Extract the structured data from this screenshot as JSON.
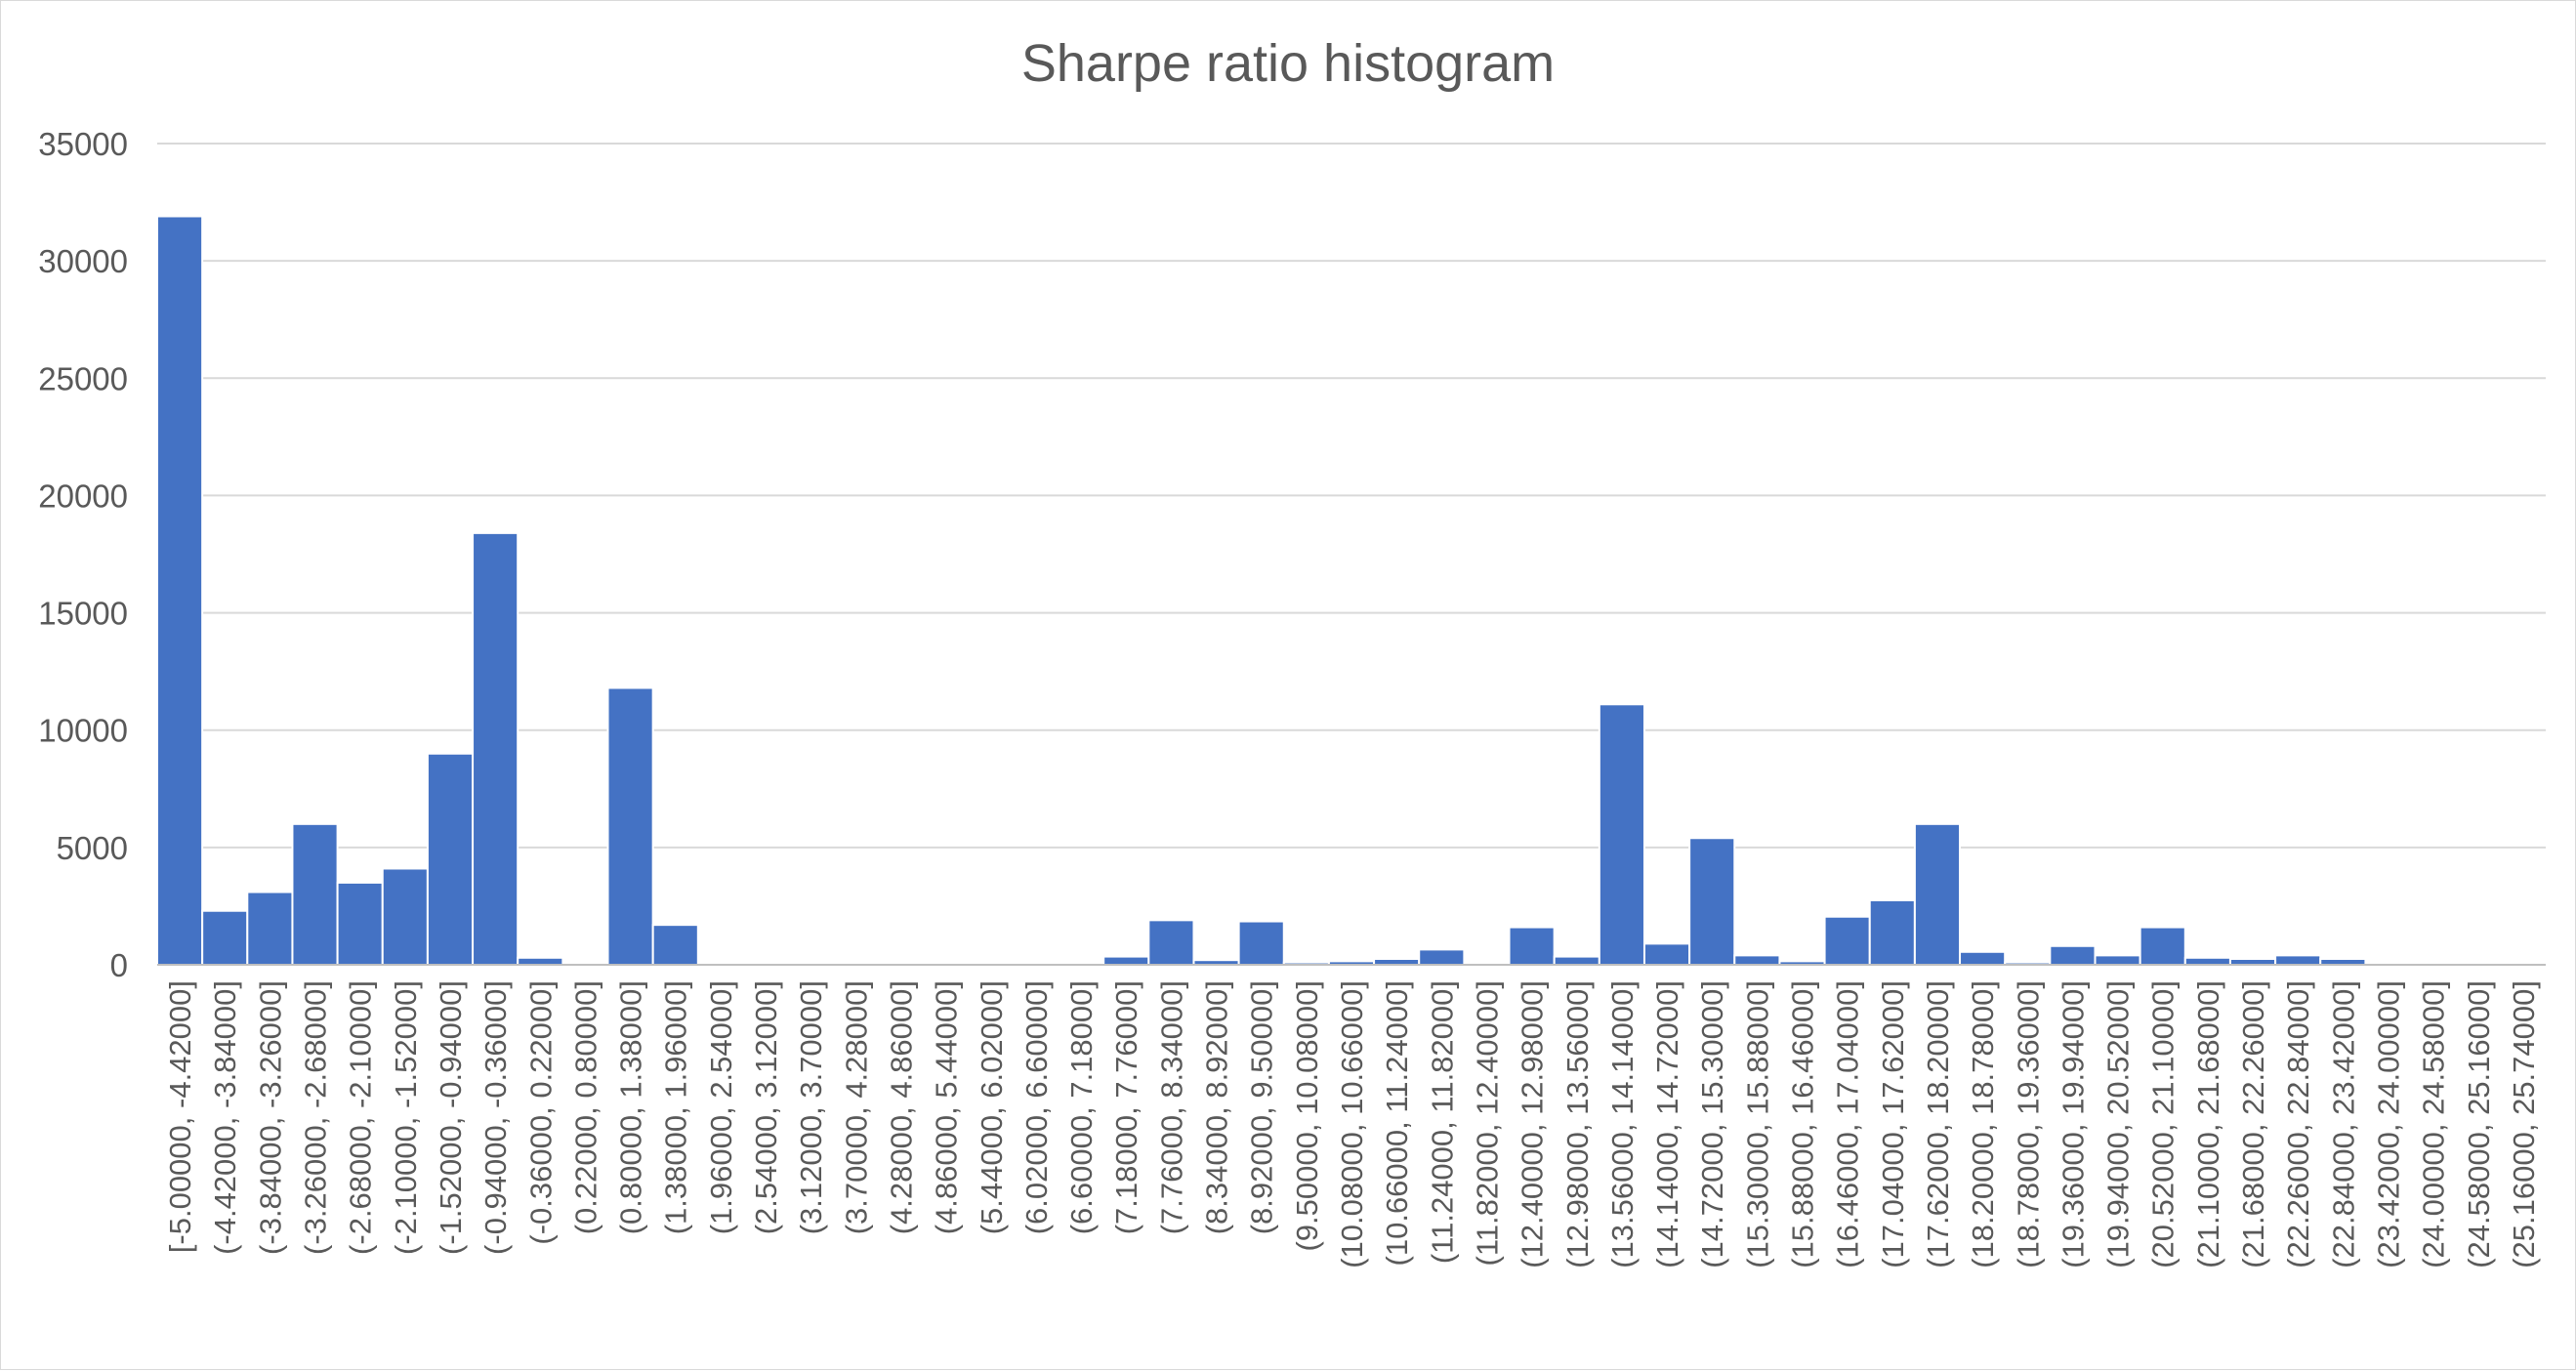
{
  "chart_data": {
    "type": "bar",
    "title": "Sharpe ratio histogram",
    "xlabel": "",
    "ylabel": "",
    "ylim": [
      0,
      35000
    ],
    "yticks": [
      0,
      5000,
      10000,
      15000,
      20000,
      25000,
      30000,
      35000
    ],
    "grid": true,
    "bar_color": "#4472C4",
    "categories": [
      "[-5.00000, -4.42000]",
      "(-4.42000, -3.84000]",
      "(-3.84000, -3.26000]",
      "(-3.26000, -2.68000]",
      "(-2.68000, -2.10000]",
      "(-2.10000, -1.52000]",
      "(-1.52000, -0.94000]",
      "(-0.94000, -0.36000]",
      "(-0.36000, 0.22000]",
      "(0.22000, 0.80000]",
      "(0.80000, 1.38000]",
      "(1.38000, 1.96000]",
      "(1.96000, 2.54000]",
      "(2.54000, 3.12000]",
      "(3.12000, 3.70000]",
      "(3.70000, 4.28000]",
      "(4.28000, 4.86000]",
      "(4.86000, 5.44000]",
      "(5.44000, 6.02000]",
      "(6.02000, 6.60000]",
      "(6.60000, 7.18000]",
      "(7.18000, 7.76000]",
      "(7.76000, 8.34000]",
      "(8.34000, 8.92000]",
      "(8.92000, 9.50000]",
      "(9.50000, 10.08000]",
      "(10.08000, 10.66000]",
      "(10.66000, 11.24000]",
      "(11.24000, 11.82000]",
      "(11.82000, 12.40000]",
      "(12.40000, 12.98000]",
      "(12.98000, 13.56000]",
      "(13.56000, 14.14000]",
      "(14.14000, 14.72000]",
      "(14.72000, 15.30000]",
      "(15.30000, 15.88000]",
      "(15.88000, 16.46000]",
      "(16.46000, 17.04000]",
      "(17.04000, 17.62000]",
      "(17.62000, 18.20000]",
      "(18.20000, 18.78000]",
      "(18.78000, 19.36000]",
      "(19.36000, 19.94000]",
      "(19.94000, 20.52000]",
      "(20.52000, 21.10000]",
      "(21.10000, 21.68000]",
      "(21.68000, 22.26000]",
      "(22.26000, 22.84000]",
      "(22.84000, 23.42000]",
      "(23.42000, 24.00000]",
      "(24.00000, 24.58000]",
      "(24.58000, 25.16000]",
      "(25.16000, 25.74000]"
    ],
    "values": [
      31900,
      2300,
      3100,
      6000,
      3500,
      4100,
      9000,
      18400,
      300,
      0,
      11800,
      1700,
      0,
      0,
      0,
      0,
      0,
      0,
      0,
      0,
      0,
      350,
      1900,
      200,
      1850,
      100,
      150,
      250,
      650,
      0,
      1600,
      350,
      11100,
      900,
      5400,
      400,
      150,
      2050,
      2750,
      6000,
      550,
      100,
      800,
      400,
      1600,
      300,
      250,
      400,
      250,
      0,
      0,
      0,
      0
    ]
  }
}
